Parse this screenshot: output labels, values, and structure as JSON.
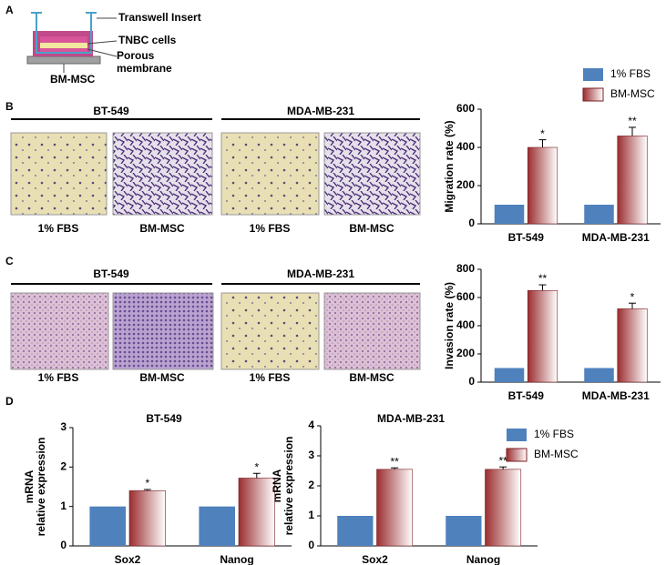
{
  "panel_labels": [
    "A",
    "B",
    "C",
    "D"
  ],
  "diagram": {
    "insert": "Transwell Insert",
    "cells": "TNBC cells",
    "membrane": "Porous membrane",
    "bottom": "BM-MSC"
  },
  "panel_b": {
    "groups": [
      "BT-549",
      "MDA-MB-231"
    ],
    "captions": [
      "1% FBS",
      "BM-MSC",
      "1% FBS",
      "BM-MSC"
    ]
  },
  "panel_c": {
    "groups": [
      "BT-549",
      "MDA-MB-231"
    ],
    "captions": [
      "1% FBS",
      "BM-MSC",
      "1% FBS",
      "BM-MSC"
    ]
  },
  "chart_data": [
    {
      "type": "bar",
      "ylabel": [
        "Migration rate (%)"
      ],
      "categories": [
        "BT-549",
        "MDA-MB-231"
      ],
      "series": [
        {
          "name": "1% FBS",
          "color": "#4f81bd",
          "values": [
            100,
            100
          ]
        },
        {
          "name": "BM-MSC",
          "color": "#9b2d30",
          "values": [
            400,
            460
          ],
          "errors": [
            40,
            45
          ],
          "significance": [
            "*",
            "**"
          ]
        }
      ],
      "ylim": [
        0,
        600
      ],
      "yticks": [
        0,
        200,
        400,
        600
      ],
      "legend": true
    },
    {
      "type": "bar",
      "ylabel": [
        "Invasion rate (%)"
      ],
      "categories": [
        "BT-549",
        "MDA-MB-231"
      ],
      "series": [
        {
          "name": "1% FBS",
          "color": "#4f81bd",
          "values": [
            100,
            100
          ]
        },
        {
          "name": "BM-MSC",
          "color": "#9b2d30",
          "values": [
            650,
            520
          ],
          "errors": [
            40,
            40
          ],
          "significance": [
            "**",
            "*"
          ]
        }
      ],
      "ylim": [
        0,
        800
      ],
      "yticks": [
        0,
        200,
        400,
        600,
        800
      ],
      "legend": false
    },
    {
      "type": "bar",
      "title": "BT-549",
      "ylabel": [
        "mRNA",
        "relative expression"
      ],
      "categories": [
        "Sox2",
        "Nanog"
      ],
      "series": [
        {
          "name": "1% FBS",
          "color": "#4f81bd",
          "values": [
            1,
            1
          ]
        },
        {
          "name": "BM-MSC",
          "color": "#9b2d30",
          "values": [
            1.4,
            1.72
          ],
          "errors": [
            0.03,
            0.12
          ],
          "significance": [
            "*",
            "*"
          ]
        }
      ],
      "ylim": [
        0,
        3
      ],
      "yticks": [
        0,
        1,
        2,
        3
      ],
      "legend": false
    },
    {
      "type": "bar",
      "title": "MDA-MB-231",
      "ylabel": [
        "mRNA",
        "relative expression"
      ],
      "categories": [
        "Sox2",
        "Nanog"
      ],
      "series": [
        {
          "name": "1% FBS",
          "color": "#4f81bd",
          "values": [
            1,
            1
          ]
        },
        {
          "name": "BM-MSC",
          "color": "#9b2d30",
          "values": [
            2.55,
            2.55
          ],
          "errors": [
            0.05,
            0.08
          ],
          "significance": [
            "**",
            "**"
          ]
        }
      ],
      "ylim": [
        0,
        4
      ],
      "yticks": [
        0,
        1,
        2,
        3,
        4
      ],
      "legend": true
    }
  ]
}
